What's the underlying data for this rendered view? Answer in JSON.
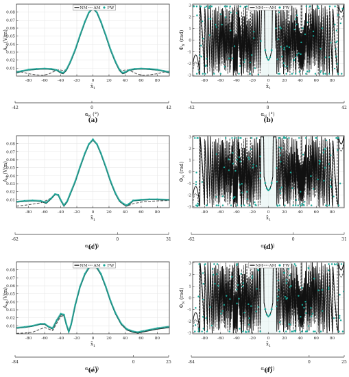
{
  "figure": {
    "colors": {
      "NM": "#111111",
      "AM": "#555555",
      "FW": "#19a89a",
      "grid": "#e6e6e6",
      "shade": "#e0f2f0"
    }
  },
  "chart_data": [
    {
      "id": "a",
      "type": "line",
      "kind": "amplitude",
      "panel_label": "(a)",
      "ylabel": "A",
      "ylabel_sub": "N",
      "ylabel_unit": "(V/m)",
      "xlabel": "x̃",
      "xlabel_sub": "1",
      "xlim": [
        -95,
        95
      ],
      "ylim": [
        0,
        0.09
      ],
      "xticks": [
        -80,
        -60,
        -40,
        -20,
        0,
        20,
        40,
        60,
        80
      ],
      "yticks": [
        0.01,
        0.02,
        0.03,
        0.04,
        0.05,
        0.06,
        0.07,
        0.08
      ],
      "ytick_labels": [
        "0.01",
        "0.02",
        "0.03",
        "0.04",
        "0.05",
        "0.06",
        "0.07",
        "0.08"
      ],
      "legend": [
        "NM",
        "AM",
        "FW"
      ],
      "legend_position": "top",
      "grid": true,
      "series": [
        {
          "name": "NM",
          "x": [
            -95,
            -88,
            -80,
            -70,
            -60,
            -52,
            -45,
            -40,
            -37,
            -33,
            -28,
            -22,
            -16,
            -10,
            -5,
            0,
            5,
            10,
            16,
            22,
            28,
            33,
            37,
            40,
            45,
            52,
            60,
            70,
            80,
            88,
            95
          ],
          "y": [
            0.004,
            0.006,
            0.0075,
            0.0085,
            0.009,
            0.0085,
            0.007,
            0.004,
            0.003,
            0.007,
            0.017,
            0.032,
            0.05,
            0.067,
            0.079,
            0.0845,
            0.079,
            0.067,
            0.05,
            0.032,
            0.017,
            0.007,
            0.003,
            0.004,
            0.007,
            0.0085,
            0.009,
            0.0085,
            0.0075,
            0.006,
            0.004
          ]
        },
        {
          "name": "AM",
          "x": [
            -95,
            -88,
            -80,
            -70,
            -62,
            -55,
            -48,
            -42,
            -37,
            -33,
            -28,
            -22,
            -16,
            -10,
            -5,
            0,
            5,
            10,
            16,
            22,
            28,
            33,
            37,
            42,
            48,
            55,
            62,
            70,
            80,
            88,
            95
          ],
          "y": [
            0.006,
            0.005,
            0.003,
            0.0015,
            0.001,
            0.0025,
            0.006,
            0.008,
            0.007,
            0.008,
            0.017,
            0.032,
            0.05,
            0.067,
            0.079,
            0.0845,
            0.079,
            0.067,
            0.05,
            0.032,
            0.017,
            0.008,
            0.007,
            0.008,
            0.006,
            0.0025,
            0.001,
            0.0015,
            0.003,
            0.005,
            0.006
          ]
        },
        {
          "name": "FW",
          "x": [
            -95,
            -88,
            -80,
            -70,
            -60,
            -52,
            -45,
            -40,
            -37,
            -33,
            -28,
            -22,
            -16,
            -10,
            -5,
            0,
            5,
            10,
            16,
            22,
            28,
            33,
            37,
            40,
            45,
            52,
            60,
            70,
            80,
            88,
            95
          ],
          "y": [
            0.005,
            0.0065,
            0.008,
            0.009,
            0.0095,
            0.009,
            0.0075,
            0.005,
            0.004,
            0.008,
            0.018,
            0.033,
            0.051,
            0.068,
            0.0795,
            0.0855,
            0.0795,
            0.068,
            0.051,
            0.033,
            0.018,
            0.008,
            0.004,
            0.005,
            0.0075,
            0.009,
            0.0095,
            0.009,
            0.008,
            0.0065,
            0.005
          ]
        }
      ],
      "secondary_axis": {
        "label": "α",
        "label_sub": "N",
        "label_unit": "(°)",
        "range": [
          -42,
          42
        ],
        "ticks": [
          -42,
          0,
          42
        ]
      }
    },
    {
      "id": "b",
      "type": "line",
      "kind": "phase",
      "panel_label": "(b)",
      "ylabel": "Φ",
      "ylabel_sub": "N",
      "ylabel_unit": "(rad)",
      "xlabel": "x̃",
      "xlabel_sub": "1",
      "xlim": [
        -95,
        95
      ],
      "ylim": [
        -3.1,
        3.1
      ],
      "xticks": [
        -80,
        -60,
        -40,
        -20,
        0,
        20,
        40,
        60,
        80
      ],
      "yticks": [
        -3,
        -2,
        -1,
        0,
        1,
        2,
        3
      ],
      "ytick_labels": [
        "-3",
        "-2",
        "-1",
        "0",
        "1",
        "2",
        "3"
      ],
      "legend": [
        "NM",
        "AM",
        "FW"
      ],
      "legend_position": "top",
      "grid": true,
      "phase_profile": {
        "central_dip_center": 0,
        "central_dip_halfwidth": 5,
        "central_dip_min": -1.7,
        "dense_zone_outer": 95,
        "quiet_zone": 9
      },
      "secondary_axis": {
        "label": "α",
        "label_sub": "N",
        "label_unit": "(°)",
        "range": [
          -42,
          42
        ],
        "ticks": [
          -42,
          0,
          42
        ]
      }
    },
    {
      "id": "c",
      "type": "line",
      "kind": "amplitude",
      "panel_label": "(c)",
      "ylabel": "A",
      "ylabel_sub": "N",
      "ylabel_unit": "(V/m)",
      "xlabel": "x̃",
      "xlabel_sub": "1",
      "xlim": [
        -95,
        95
      ],
      "ylim": [
        0,
        0.09
      ],
      "xticks": [
        -80,
        -60,
        -40,
        -20,
        0,
        20,
        40,
        60,
        80
      ],
      "yticks": [
        0.01,
        0.02,
        0.03,
        0.04,
        0.05,
        0.06,
        0.07,
        0.08
      ],
      "ytick_labels": [
        "0.01",
        "0.02",
        "0.03",
        "0.04",
        "0.05",
        "0.06",
        "0.07",
        "0.08"
      ],
      "legend": [],
      "grid": true,
      "series": [
        {
          "name": "NM",
          "x": [
            -95,
            -85,
            -75,
            -65,
            -58,
            -52,
            -47,
            -43,
            -40,
            -36,
            -32,
            -28,
            -22,
            -16,
            -10,
            -5,
            0,
            5,
            10,
            16,
            22,
            28,
            33,
            38,
            42,
            45,
            50,
            60,
            70,
            80,
            95
          ],
          "y": [
            0.007,
            0.008,
            0.0085,
            0.008,
            0.0055,
            0.011,
            0.0165,
            0.0155,
            0.009,
            0.002,
            0.007,
            0.017,
            0.032,
            0.05,
            0.067,
            0.079,
            0.0845,
            0.079,
            0.067,
            0.05,
            0.032,
            0.017,
            0.008,
            0.004,
            0.002,
            0.004,
            0.0085,
            0.0095,
            0.01,
            0.01,
            0.0095
          ]
        },
        {
          "name": "AM",
          "x": [
            -95,
            -85,
            -75,
            -65,
            -58,
            -52,
            -47,
            -43,
            -40,
            -36,
            -32,
            -28,
            -22,
            -16,
            -10,
            -5,
            0,
            5,
            10,
            16,
            22,
            28,
            33,
            38,
            42,
            45,
            50,
            60,
            70,
            80,
            95
          ],
          "y": [
            0.002,
            0.003,
            0.0045,
            0.006,
            0.009,
            0.012,
            0.017,
            0.015,
            0.009,
            0.003,
            0.008,
            0.017,
            0.032,
            0.05,
            0.067,
            0.079,
            0.0845,
            0.079,
            0.067,
            0.05,
            0.032,
            0.017,
            0.008,
            0.004,
            0.002,
            0.003,
            0.005,
            0.007,
            0.008,
            0.0085,
            0.009
          ]
        },
        {
          "name": "FW",
          "x": [
            -95,
            -85,
            -75,
            -65,
            -58,
            -52,
            -47,
            -43,
            -40,
            -36,
            -32,
            -28,
            -22,
            -16,
            -10,
            -5,
            0,
            5,
            10,
            16,
            22,
            28,
            33,
            38,
            42,
            45,
            50,
            60,
            70,
            80,
            95
          ],
          "y": [
            0.0075,
            0.0085,
            0.009,
            0.0085,
            0.0065,
            0.0115,
            0.017,
            0.016,
            0.0095,
            0.003,
            0.008,
            0.018,
            0.033,
            0.051,
            0.068,
            0.0795,
            0.0855,
            0.0795,
            0.068,
            0.051,
            0.033,
            0.018,
            0.009,
            0.005,
            0.003,
            0.005,
            0.009,
            0.01,
            0.0105,
            0.0105,
            0.01
          ]
        }
      ],
      "secondary_axis": {
        "label": "α",
        "label_sub": "N",
        "label_unit": "(°)",
        "range": [
          -62,
          31
        ],
        "ticks": [
          -62,
          0,
          31
        ]
      }
    },
    {
      "id": "d",
      "type": "line",
      "kind": "phase",
      "panel_label": "(d)",
      "ylabel": "Φ",
      "ylabel_sub": "N",
      "ylabel_unit": "(rad)",
      "xlabel": "x̃",
      "xlabel_sub": "1",
      "xlim": [
        -95,
        95
      ],
      "ylim": [
        -3.1,
        3.1
      ],
      "xticks": [
        -80,
        -60,
        -40,
        -20,
        0,
        20,
        40,
        60,
        80
      ],
      "yticks": [
        -3,
        -2,
        -1,
        0,
        1,
        2,
        3
      ],
      "ytick_labels": [
        "-3",
        "-2",
        "-1",
        "0",
        "1",
        "2",
        "3"
      ],
      "legend": [],
      "grid": true,
      "phase_profile": {
        "central_dip_center": 0,
        "central_dip_halfwidth": 6,
        "central_dip_min": -1.6,
        "dense_zone_outer": 95,
        "quiet_zone": 10
      },
      "secondary_axis": {
        "label": "α",
        "label_sub": "N",
        "label_unit": "(°)",
        "range": [
          -62,
          31
        ],
        "ticks": [
          -62,
          0,
          31
        ]
      }
    },
    {
      "id": "e",
      "type": "line",
      "kind": "amplitude",
      "panel_label": "(e)",
      "ylabel": "A",
      "ylabel_sub": "N",
      "ylabel_unit": "(V/m)",
      "xlabel": "x̃",
      "xlabel_sub": "1",
      "xlim": [
        -95,
        95
      ],
      "ylim": [
        0,
        0.09
      ],
      "xticks": [
        -80,
        -60,
        -40,
        -20,
        0,
        20,
        40,
        60,
        80
      ],
      "yticks": [
        0.01,
        0.02,
        0.03,
        0.04,
        0.05,
        0.06,
        0.07,
        0.08
      ],
      "ytick_labels": [
        "0.01",
        "0.02",
        "0.03",
        "0.04",
        "0.05",
        "0.06",
        "0.07",
        "0.08"
      ],
      "legend": [
        "NM",
        "AM",
        "FW"
      ],
      "legend_position": "top",
      "grid": true,
      "series": [
        {
          "name": "NM",
          "x": [
            -95,
            -85,
            -75,
            -65,
            -60,
            -55,
            -50,
            -45,
            -40,
            -36,
            -33,
            -30,
            -27,
            -22,
            -16,
            -10,
            -5,
            0,
            5,
            10,
            16,
            22,
            28,
            35,
            42,
            50,
            56,
            60,
            70,
            80,
            95
          ],
          "y": [
            0.007,
            0.008,
            0.0095,
            0.012,
            0.012,
            0.0085,
            0.006,
            0.016,
            0.024,
            0.023,
            0.011,
            0.002,
            0.011,
            0.035,
            0.058,
            0.074,
            0.082,
            0.085,
            0.082,
            0.074,
            0.058,
            0.04,
            0.025,
            0.012,
            0.005,
            0.002,
            0.001,
            0.002,
            0.004,
            0.006,
            0.008
          ]
        },
        {
          "name": "AM",
          "x": [
            -95,
            -85,
            -75,
            -65,
            -60,
            -55,
            -50,
            -45,
            -40,
            -36,
            -33,
            -30,
            -27,
            -22,
            -16,
            -10,
            -5,
            0,
            5,
            10,
            16,
            22,
            28,
            35,
            42,
            50,
            56,
            60,
            70,
            80,
            95
          ],
          "y": [
            0.0005,
            0.001,
            0.002,
            0.006,
            0.008,
            0.006,
            0.004,
            0.013,
            0.022,
            0.022,
            0.011,
            0.003,
            0.012,
            0.036,
            0.059,
            0.075,
            0.083,
            0.086,
            0.083,
            0.075,
            0.059,
            0.041,
            0.026,
            0.013,
            0.006,
            0.003,
            0.002,
            0.003,
            0.005,
            0.007,
            0.009
          ]
        },
        {
          "name": "FW",
          "x": [
            -95,
            -85,
            -75,
            -65,
            -60,
            -55,
            -50,
            -45,
            -40,
            -36,
            -33,
            -30,
            -27,
            -22,
            -16,
            -10,
            -5,
            0,
            5,
            10,
            16,
            22,
            28,
            35,
            42,
            50,
            56,
            60,
            70,
            80,
            95
          ],
          "y": [
            0.0075,
            0.0085,
            0.01,
            0.0125,
            0.0125,
            0.009,
            0.007,
            0.017,
            0.025,
            0.024,
            0.012,
            0.003,
            0.012,
            0.036,
            0.059,
            0.075,
            0.083,
            0.0865,
            0.083,
            0.075,
            0.059,
            0.041,
            0.026,
            0.013,
            0.006,
            0.003,
            0.002,
            0.003,
            0.005,
            0.007,
            0.009
          ]
        }
      ],
      "secondary_axis": {
        "label": "α",
        "label_sub": "N",
        "label_unit": "(°)",
        "range": [
          -84,
          25
        ],
        "ticks": [
          -84,
          0,
          25
        ]
      }
    },
    {
      "id": "f",
      "type": "line",
      "kind": "phase",
      "panel_label": "(f)",
      "ylabel": "Φ",
      "ylabel_sub": "N",
      "ylabel_unit": "(rad)",
      "xlabel": "x̃",
      "xlabel_sub": "1",
      "xlim": [
        -95,
        95
      ],
      "ylim": [
        -3.1,
        3.1
      ],
      "xticks": [
        -80,
        -60,
        -40,
        -20,
        0,
        20,
        40,
        60,
        80
      ],
      "yticks": [
        -3,
        -2,
        -1,
        0,
        1,
        2,
        3
      ],
      "ytick_labels": [
        "-3",
        "-2",
        "-1",
        "0",
        "1",
        "2",
        "3"
      ],
      "legend": [
        "NM",
        "AM",
        "FW"
      ],
      "legend_position": "top",
      "grid": true,
      "phase_profile": {
        "central_dip_center": 0,
        "central_dip_halfwidth": 6,
        "central_dip_min": -1.6,
        "dense_zone_outer": 95,
        "quiet_zone": 10
      },
      "secondary_axis": {
        "label": "α",
        "label_sub": "N",
        "label_unit": "(°)",
        "range": [
          -84,
          25
        ],
        "ticks": [
          -84,
          0,
          25
        ]
      }
    }
  ]
}
